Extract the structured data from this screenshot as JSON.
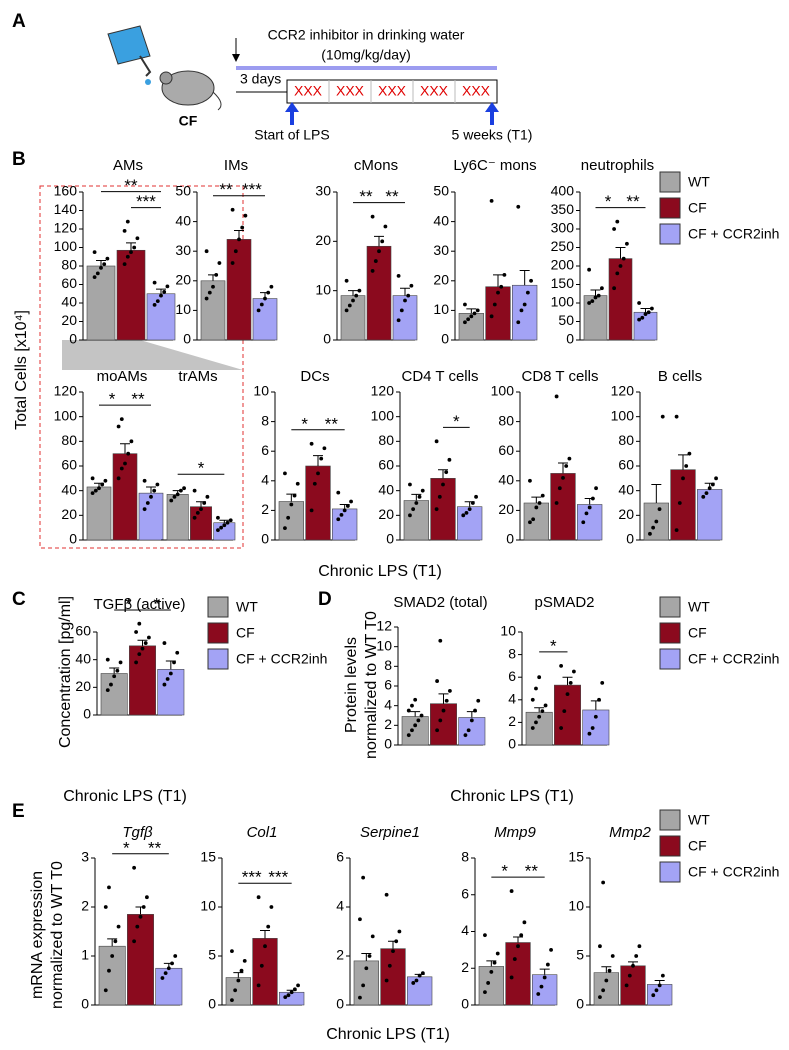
{
  "panel_labels": [
    "A",
    "B",
    "C",
    "D",
    "E"
  ],
  "diagram": {
    "mouse_label": "CF",
    "treatment": "CCR2 inhibitor in drinking water",
    "dose": "(10mg/kg/day)",
    "lead": "3 days",
    "cells": [
      "XXX",
      "XXX",
      "XXX",
      "XXX",
      "XXX"
    ],
    "start": "Start of LPS",
    "end": "5 weeks (T1)"
  },
  "groups": [
    {
      "name": "WT",
      "color": "#a6a6a6"
    },
    {
      "name": "CF",
      "color": "#8b0a1e"
    },
    {
      "name": "CF + CCR2inh",
      "color": "#a3a3f5"
    }
  ],
  "axis_labels": {
    "B": {
      "ylabel": [
        "Total Cells [x10⁴]"
      ],
      "xlabel": "Chronic LPS (T1)"
    },
    "C": {
      "ylabel": [
        "Concentration [pg/ml]"
      ],
      "xlabel": "Chronic LPS (T1)"
    },
    "D": {
      "ylabel": [
        "Protein levels",
        "normalized to WT T0"
      ],
      "xlabel": "Chronic LPS (T1)"
    },
    "E": {
      "ylabel": [
        "mRNA expression",
        "normalized to WT T0"
      ],
      "xlabel": "Chronic LPS (T1)"
    }
  },
  "chart_data": [
    {
      "type": "bar",
      "title": "AMs",
      "values": [
        80,
        97,
        50
      ],
      "errors": [
        6,
        8,
        5
      ],
      "points": [
        [
          68,
          72,
          78,
          82,
          88,
          95
        ],
        [
          82,
          90,
          95,
          100,
          110,
          118,
          128
        ],
        [
          38,
          42,
          48,
          52,
          58,
          62
        ]
      ],
      "ylim": [
        0,
        160
      ],
      "yticks": [
        0,
        20,
        40,
        60,
        80,
        100,
        120,
        140,
        160
      ],
      "significance": [
        {
          "pair": [
            0,
            2
          ],
          "label": "**"
        },
        {
          "pair": [
            1,
            2
          ],
          "label": "***"
        }
      ]
    },
    {
      "type": "bar",
      "title": "IMs",
      "values": [
        20,
        34,
        14
      ],
      "errors": [
        2,
        3,
        2
      ],
      "points": [
        [
          14,
          16,
          18,
          22,
          26,
          30
        ],
        [
          26,
          30,
          34,
          38,
          42,
          44
        ],
        [
          10,
          12,
          14,
          16,
          18
        ]
      ],
      "ylim": [
        0,
        50
      ],
      "yticks": [
        0,
        10,
        20,
        30,
        40,
        50
      ],
      "significance": [
        {
          "pair": [
            0,
            1
          ],
          "label": "**"
        },
        {
          "pair": [
            1,
            2
          ],
          "label": "***"
        }
      ]
    },
    {
      "type": "bar",
      "title": "cMons",
      "values": [
        9,
        19,
        9
      ],
      "errors": [
        1,
        2,
        1.5
      ],
      "points": [
        [
          6,
          7,
          8,
          9,
          10,
          12
        ],
        [
          14,
          16,
          18,
          20,
          23,
          25
        ],
        [
          4,
          6,
          8,
          9,
          11,
          13
        ]
      ],
      "ylim": [
        0,
        30
      ],
      "yticks": [
        0,
        10,
        20,
        30
      ],
      "significance": [
        {
          "pair": [
            0,
            1
          ],
          "label": "**"
        },
        {
          "pair": [
            1,
            2
          ],
          "label": "**"
        }
      ]
    },
    {
      "type": "bar",
      "title": "Ly6C⁻ mons",
      "values": [
        9,
        18,
        18.5
      ],
      "errors": [
        1.5,
        4,
        5
      ],
      "points": [
        [
          6,
          7,
          8,
          9,
          10,
          12
        ],
        [
          8,
          12,
          16,
          18,
          22,
          47
        ],
        [
          6,
          10,
          12,
          16,
          20,
          45
        ]
      ],
      "ylim": [
        0,
        50
      ],
      "yticks": [
        0,
        10,
        20,
        30,
        40,
        50
      ],
      "significance": []
    },
    {
      "type": "bar",
      "title": "neutrophils",
      "values": [
        120,
        220,
        75
      ],
      "errors": [
        15,
        30,
        10
      ],
      "points": [
        [
          100,
          105,
          115,
          120,
          140,
          190
        ],
        [
          140,
          180,
          200,
          220,
          260,
          300,
          320
        ],
        [
          55,
          60,
          70,
          75,
          85,
          100
        ]
      ],
      "ylim": [
        0,
        400
      ],
      "yticks": [
        0,
        50,
        100,
        150,
        200,
        250,
        300,
        350,
        400
      ],
      "significance": [
        {
          "pair": [
            0,
            1
          ],
          "label": "*"
        },
        {
          "pair": [
            1,
            2
          ],
          "label": "**"
        }
      ]
    },
    {
      "type": "bar",
      "title": "moAMs",
      "values": [
        43,
        70,
        38
      ],
      "errors": [
        3,
        8,
        5
      ],
      "points": [
        [
          38,
          40,
          42,
          45,
          48,
          50
        ],
        [
          50,
          58,
          62,
          70,
          80,
          92,
          98
        ],
        [
          25,
          30,
          35,
          40,
          45,
          48
        ]
      ],
      "ylim": [
        0,
        120
      ],
      "yticks": [
        0,
        20,
        40,
        60,
        80,
        100,
        120
      ],
      "significance": [
        {
          "pair": [
            0,
            1
          ],
          "label": "*"
        },
        {
          "pair": [
            1,
            2
          ],
          "label": "**"
        }
      ]
    },
    {
      "type": "bar",
      "title": "trAMs",
      "values": [
        37,
        27,
        14
      ],
      "errors": [
        3,
        4,
        2
      ],
      "points": [
        [
          32,
          35,
          37,
          40,
          42
        ],
        [
          18,
          22,
          25,
          30,
          35,
          40
        ],
        [
          8,
          10,
          12,
          14,
          16,
          18
        ]
      ],
      "significance": [
        {
          "pair": [
            0,
            2
          ],
          "label": "*"
        }
      ]
    },
    {
      "type": "bar",
      "title": "DCs",
      "values": [
        2.6,
        5.0,
        2.1
      ],
      "errors": [
        0.5,
        0.7,
        0.3
      ],
      "points": [
        [
          0.8,
          1.5,
          2.4,
          3.0,
          3.8,
          4.5
        ],
        [
          2.0,
          3.8,
          4.5,
          5.5,
          6.2,
          6.5
        ],
        [
          1.4,
          1.7,
          2.0,
          2.3,
          2.6,
          3.2
        ]
      ],
      "ylim": [
        0,
        10
      ],
      "yticks": [
        0,
        2,
        4,
        6,
        8,
        10
      ],
      "significance": [
        {
          "pair": [
            0,
            1
          ],
          "label": "*"
        },
        {
          "pair": [
            1,
            2
          ],
          "label": "**"
        }
      ]
    },
    {
      "type": "bar",
      "title": "CD4 T cells",
      "values": [
        32,
        50,
        27
      ],
      "errors": [
        5,
        7,
        4
      ],
      "points": [
        [
          20,
          25,
          30,
          35,
          40,
          45
        ],
        [
          25,
          35,
          45,
          55,
          65,
          80
        ],
        [
          20,
          22,
          25,
          30,
          35
        ]
      ],
      "ylim": [
        0,
        120
      ],
      "yticks": [
        0,
        20,
        40,
        60,
        80,
        100,
        120
      ],
      "significance": [
        {
          "pair": [
            1,
            2
          ],
          "label": "*"
        }
      ]
    },
    {
      "type": "bar",
      "title": "CD8 T cells",
      "values": [
        25,
        45,
        24
      ],
      "errors": [
        4,
        7,
        4
      ],
      "points": [
        [
          12,
          14,
          22,
          25,
          30,
          40
        ],
        [
          25,
          35,
          42,
          50,
          55,
          97
        ],
        [
          12,
          18,
          22,
          28,
          35
        ]
      ],
      "ylim": [
        0,
        100
      ],
      "yticks": [
        0,
        20,
        40,
        60,
        80,
        100
      ],
      "significance": []
    },
    {
      "type": "bar",
      "title": "B cells",
      "values": [
        30,
        57,
        41
      ],
      "errors": [
        15,
        12,
        5
      ],
      "points": [
        [
          5,
          10,
          15,
          25,
          100
        ],
        [
          8,
          30,
          50,
          60,
          70,
          100
        ],
        [
          35,
          38,
          42,
          45,
          50
        ]
      ],
      "ylim": [
        0,
        120
      ],
      "yticks": [
        0,
        20,
        40,
        60,
        80,
        100,
        120
      ],
      "significance": []
    },
    {
      "type": "bar",
      "title": "TGFβ (active)",
      "values": [
        30,
        50,
        33
      ],
      "errors": [
        4,
        4,
        6
      ],
      "points": [
        [
          18,
          22,
          28,
          32,
          38,
          40
        ],
        [
          38,
          44,
          48,
          52,
          56,
          60,
          66
        ],
        [
          22,
          26,
          30,
          38,
          45,
          52
        ]
      ],
      "ylim": [
        0,
        60
      ],
      "yticks": [
        0,
        20,
        40,
        60
      ],
      "significance": [
        {
          "pair": [
            0,
            1
          ],
          "label": "*"
        },
        {
          "pair": [
            1,
            2
          ],
          "label": "*"
        }
      ]
    },
    {
      "type": "bar",
      "title": "SMAD2 (total)",
      "values": [
        2.9,
        4.2,
        2.8
      ],
      "errors": [
        0.5,
        1,
        0.6
      ],
      "points": [
        [
          1,
          1.5,
          2,
          2.5,
          3,
          3.5,
          4,
          4.6
        ],
        [
          1.5,
          2.5,
          3.5,
          4.5,
          5.5,
          6.5,
          10.6
        ],
        [
          1,
          1.5,
          2.5,
          3.5,
          4.5
        ]
      ],
      "ylim": [
        0,
        12
      ],
      "yticks": [
        0,
        2,
        4,
        6,
        8,
        10,
        12
      ],
      "significance": []
    },
    {
      "type": "bar",
      "title": "pSMAD2",
      "values": [
        2.9,
        5.3,
        3.1
      ],
      "errors": [
        0.4,
        0.7,
        0.8
      ],
      "points": [
        [
          1.5,
          2,
          2.5,
          3,
          3.5,
          4,
          5,
          6
        ],
        [
          1.5,
          3,
          4.5,
          5.5,
          6.5,
          7
        ],
        [
          1,
          1.5,
          2.5,
          4,
          5.5
        ]
      ],
      "ylim": [
        0,
        10
      ],
      "yticks": [
        0,
        2,
        4,
        6,
        8,
        10
      ],
      "significance": [
        {
          "pair": [
            0,
            1
          ],
          "label": "*"
        }
      ]
    },
    {
      "type": "bar",
      "title": "Tgfβ",
      "italic": true,
      "values": [
        1.2,
        1.85,
        0.75
      ],
      "errors": [
        0.15,
        0.15,
        0.1
      ],
      "points": [
        [
          0.3,
          0.7,
          1.0,
          1.3,
          1.6,
          2.0,
          2.4
        ],
        [
          1.3,
          1.6,
          1.8,
          2.0,
          2.2,
          2.8
        ],
        [
          0.55,
          0.65,
          0.75,
          0.85,
          1.0
        ]
      ],
      "ylim": [
        0,
        3
      ],
      "yticks": [
        0,
        1,
        2,
        3
      ],
      "significance": [
        {
          "pair": [
            0,
            1
          ],
          "label": "*"
        },
        {
          "pair": [
            1,
            2
          ],
          "label": "**"
        }
      ]
    },
    {
      "type": "bar",
      "title": "Col1",
      "italic": true,
      "values": [
        2.8,
        6.8,
        1.3
      ],
      "errors": [
        0.5,
        0.8,
        0.2
      ],
      "points": [
        [
          0.5,
          1.5,
          2.5,
          3.5,
          4.5,
          5.5
        ],
        [
          2,
          4,
          6,
          8,
          10,
          11
        ],
        [
          0.8,
          1.0,
          1.3,
          1.6,
          2.0
        ]
      ],
      "ylim": [
        0,
        15
      ],
      "yticks": [
        0,
        5,
        10,
        15
      ],
      "significance": [
        {
          "pair": [
            0,
            1
          ],
          "label": "***"
        },
        {
          "pair": [
            1,
            2
          ],
          "label": "***"
        }
      ]
    },
    {
      "type": "bar",
      "title": "Serpine1",
      "italic": true,
      "values": [
        1.8,
        2.3,
        1.15
      ],
      "errors": [
        0.3,
        0.3,
        0.1
      ],
      "points": [
        [
          0.3,
          0.8,
          1.5,
          2.0,
          2.8,
          3.5,
          5.2
        ],
        [
          1.0,
          1.6,
          2.2,
          2.6,
          3.0,
          4.5
        ],
        [
          0.9,
          1.0,
          1.2,
          1.3
        ]
      ],
      "ylim": [
        0,
        6
      ],
      "yticks": [
        0,
        2,
        4,
        6
      ],
      "significance": []
    },
    {
      "type": "bar",
      "title": "Mmp9",
      "italic": true,
      "values": [
        2.1,
        3.4,
        1.65
      ],
      "errors": [
        0.3,
        0.3,
        0.3
      ],
      "points": [
        [
          0.7,
          1.2,
          1.8,
          2.3,
          2.8,
          3.8
        ],
        [
          1.5,
          2.5,
          3.2,
          3.8,
          4.5,
          6.2
        ],
        [
          0.6,
          1.0,
          1.5,
          2.2,
          3.0
        ]
      ],
      "ylim": [
        0,
        8
      ],
      "yticks": [
        0,
        2,
        4,
        6,
        8
      ],
      "significance": [
        {
          "pair": [
            0,
            1
          ],
          "label": "*"
        },
        {
          "pair": [
            1,
            2
          ],
          "label": "**"
        }
      ]
    },
    {
      "type": "bar",
      "title": "Mmp2",
      "italic": true,
      "values": [
        3.3,
        4.0,
        2.1
      ],
      "errors": [
        0.6,
        0.4,
        0.4
      ],
      "points": [
        [
          0.8,
          1.5,
          2.5,
          3.5,
          5,
          6,
          12.5
        ],
        [
          2,
          3,
          4,
          5,
          6
        ],
        [
          1.0,
          1.5,
          2.0,
          3.0
        ]
      ],
      "ylim": [
        0,
        15
      ],
      "yticks": [
        0,
        5,
        10,
        15
      ],
      "significance": []
    }
  ]
}
